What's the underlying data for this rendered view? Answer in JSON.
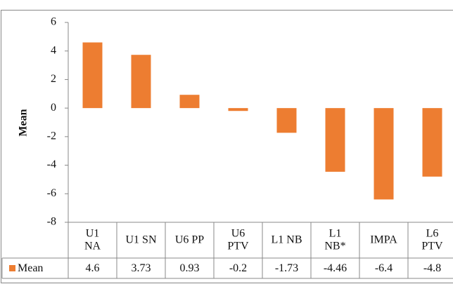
{
  "chart_data": {
    "type": "bar",
    "y_label": "Mean",
    "categories": [
      "U1\nNA",
      "U1 SN",
      "U6 PP",
      "U6\nPTV",
      "L1 NB",
      "L1\nNB*",
      "IMPA",
      "L6\nPTV"
    ],
    "series": [
      {
        "name": "Mean",
        "color": "#ed7d31",
        "values": [
          4.6,
          3.73,
          0.93,
          -0.2,
          -1.73,
          -4.46,
          -6.4,
          -4.8
        ]
      }
    ],
    "ylim": [
      -8,
      6
    ],
    "yticks": [
      -8,
      -6,
      -4,
      -2,
      0,
      2,
      4,
      6
    ]
  }
}
